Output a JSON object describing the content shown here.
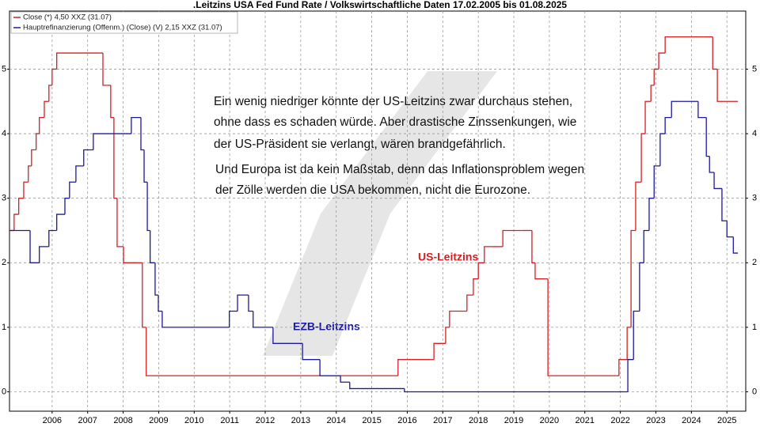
{
  "chart_data": {
    "type": "line",
    "step": "post",
    "title": ".Leitzins USA Fed Fund Rate / Volkswirtschaftliche Daten 17.02.2005 bis 01.08.2025",
    "xlim": [
      2004.8,
      2025.53
    ],
    "xticks": [
      2006,
      2007,
      2008,
      2009,
      2010,
      2011,
      2012,
      2013,
      2014,
      2015,
      2016,
      2017,
      2018,
      2019,
      2020,
      2021,
      2022,
      2023,
      2024,
      2025
    ],
    "ylim": [
      -0.3,
      5.9
    ],
    "yticks": [
      0,
      1,
      2,
      3,
      4,
      5
    ],
    "grid": true,
    "legend": "top-left",
    "series": [
      {
        "name": "Close (*) 4,50 XXZ (31.07)",
        "color": "#d42020",
        "x": [
          2004.8,
          2004.93,
          2005.06,
          2005.2,
          2005.33,
          2005.42,
          2005.55,
          2005.64,
          2005.78,
          2005.91,
          2006.0,
          2006.13,
          2007.34,
          2007.43,
          2007.56,
          2007.65,
          2007.74,
          2007.83,
          2008.01,
          2008.43,
          2008.54,
          2008.65,
          2015.65,
          2015.74,
          2016.64,
          2016.75,
          2017.08,
          2017.19,
          2017.57,
          2017.68,
          2017.86,
          2018.0,
          2018.17,
          2018.35,
          2018.69,
          2019.24,
          2019.51,
          2019.6,
          2019.87,
          2019.96,
          2021.88,
          2021.96,
          2022.19,
          2022.3,
          2022.43,
          2022.59,
          2022.7,
          2022.86,
          2022.95,
          2023.08,
          2023.26,
          2024.37,
          2024.6,
          2024.73,
          2025.31
        ],
        "values": [
          2.5,
          2.75,
          3.0,
          3.25,
          3.5,
          3.75,
          4.0,
          4.25,
          4.5,
          4.75,
          5.0,
          5.25,
          5.25,
          4.75,
          4.75,
          4.25,
          3.0,
          2.25,
          2.0,
          2.0,
          1.0,
          0.25,
          0.25,
          0.5,
          0.5,
          0.75,
          1.0,
          1.25,
          1.25,
          1.5,
          1.75,
          2.0,
          2.25,
          2.25,
          2.5,
          2.5,
          2.0,
          1.75,
          1.75,
          0.25,
          0.25,
          0.5,
          1.0,
          2.5,
          3.25,
          4.0,
          4.5,
          4.75,
          5.0,
          5.25,
          5.5,
          5.5,
          5.0,
          4.5,
          4.5
        ]
      },
      {
        "name": "Hauptrefinanzierung (Offenm.) (Close) (V) 2,15 XXZ (31.07)",
        "color": "#1a1aa0",
        "x": [
          2004.8,
          2005.38,
          2005.64,
          2005.91,
          2006.13,
          2006.36,
          2006.49,
          2006.67,
          2006.89,
          2007.16,
          2008.23,
          2008.5,
          2008.59,
          2008.68,
          2008.76,
          2008.9,
          2008.99,
          2009.1,
          2010.99,
          2011.22,
          2011.53,
          2011.66,
          2012.22,
          2013.05,
          2013.54,
          2014.12,
          2014.38,
          2015.92,
          2022.21,
          2022.37,
          2022.54,
          2022.66,
          2022.81,
          2022.95,
          2023.12,
          2023.26,
          2023.44,
          2024.19,
          2024.42,
          2024.51,
          2024.64,
          2024.86,
          2025.0,
          2025.18,
          2025.31
        ],
        "values": [
          2.5,
          2.0,
          2.25,
          2.5,
          2.75,
          3.0,
          3.25,
          3.5,
          3.75,
          4.0,
          4.25,
          3.75,
          3.25,
          2.5,
          2.0,
          1.5,
          1.25,
          1.0,
          1.25,
          1.5,
          1.25,
          1.0,
          0.75,
          0.5,
          0.25,
          0.15,
          0.05,
          0,
          0.5,
          1.25,
          2.0,
          2.5,
          3.0,
          3.5,
          4.0,
          4.25,
          4.5,
          4.25,
          3.65,
          3.4,
          3.15,
          2.65,
          2.4,
          2.15,
          2.15
        ]
      }
    ],
    "annotation_lines": [
      "Ein wenig niedriger könnte der US-Leitzins zwar durchaus stehen,",
      "ohne dass es schaden würde. Aber drastische Zinssenkungen, wie",
      "der US-Präsident sie verlangt, wären brandgefährlich.",
      "Und Europa ist da kein Maßstab, denn das Inflationsproblem wegen",
      "der Zölle werden die USA bekommen, nicht die Eurozone."
    ],
    "series_labels": [
      "US-Leitzins",
      "EZB-Leitzins"
    ]
  }
}
